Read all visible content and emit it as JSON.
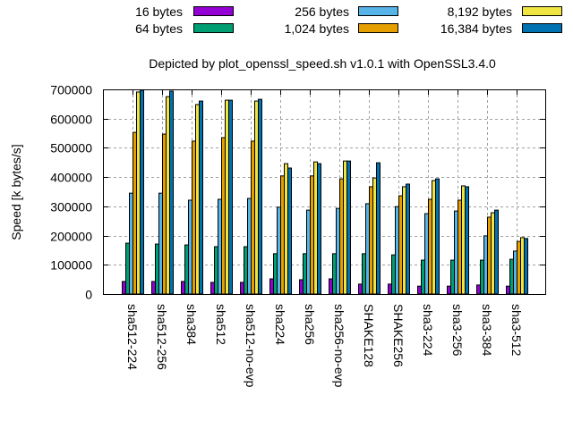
{
  "chart_data": {
    "type": "bar",
    "title": "Depicted by plot_openssl_speed.sh v1.0.1 with OpenSSL3.4.0",
    "xlabel": "",
    "ylabel": "Speed [k bytes/s]",
    "ylim": [
      0,
      700000
    ],
    "yticks": [
      0,
      100000,
      200000,
      300000,
      400000,
      500000,
      600000,
      700000
    ],
    "ytick_labels": [
      "0",
      "100000",
      "200000",
      "300000",
      "400000",
      "500000",
      "600000",
      "700000"
    ],
    "grid": true,
    "legend_position": "top",
    "categories": [
      "sha512-224",
      "sha512-256",
      "sha384",
      "sha512",
      "sha512-no-evp",
      "sha224",
      "sha256",
      "sha256-no-evp",
      "SHAKE128",
      "SHAKE256",
      "sha3-224",
      "sha3-256",
      "sha3-384",
      "sha3-512"
    ],
    "series": [
      {
        "name": "16 bytes",
        "color": "#9400d3",
        "values": [
          43000,
          43000,
          43000,
          40000,
          40000,
          52000,
          49000,
          52000,
          34000,
          34000,
          27000,
          27000,
          31000,
          27000
        ]
      },
      {
        "name": "64 bytes",
        "color": "#009e73",
        "values": [
          174000,
          171000,
          168000,
          162000,
          162000,
          138000,
          138000,
          138000,
          138000,
          134000,
          116000,
          116000,
          116000,
          119000
        ]
      },
      {
        "name": "256 bytes",
        "color": "#56b4e9",
        "values": [
          345000,
          345000,
          321000,
          324000,
          327000,
          297000,
          287000,
          293000,
          309000,
          299000,
          275000,
          284000,
          199000,
          147000
        ]
      },
      {
        "name": "1,024 bytes",
        "color": "#e69f00",
        "values": [
          553000,
          547000,
          523000,
          535000,
          523000,
          404000,
          404000,
          394000,
          367000,
          336000,
          324000,
          321000,
          263000,
          180000
        ]
      },
      {
        "name": "8,192 bytes",
        "color": "#f0e442",
        "values": [
          691000,
          675000,
          648000,
          663000,
          660000,
          446000,
          452000,
          455000,
          397000,
          367000,
          388000,
          370000,
          278000,
          193000
        ]
      },
      {
        "name": "16,384 bytes",
        "color": "#0072b2",
        "values": [
          697000,
          694000,
          660000,
          663000,
          666000,
          431000,
          446000,
          455000,
          449000,
          376000,
          394000,
          367000,
          287000,
          190000
        ]
      }
    ]
  }
}
